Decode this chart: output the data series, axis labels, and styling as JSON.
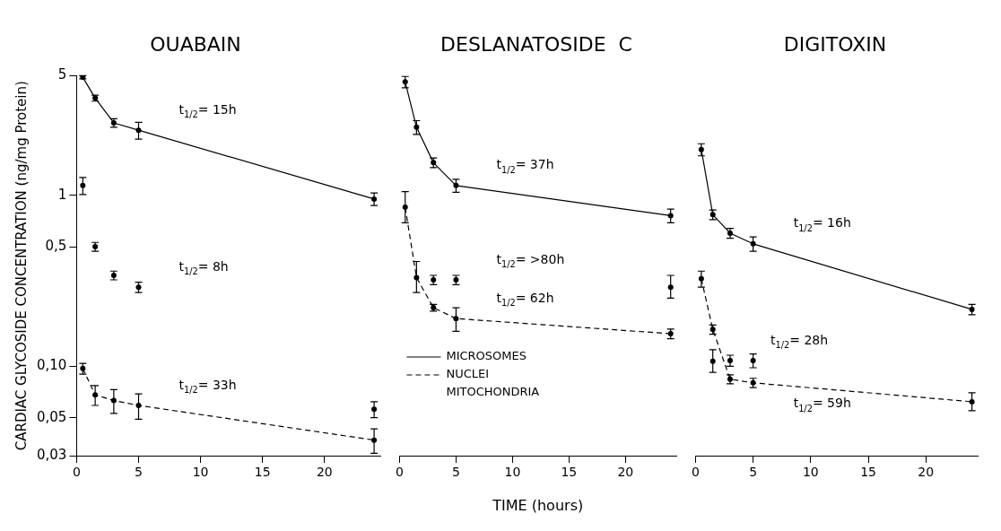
{
  "chart_data": [
    {
      "type": "line",
      "title": "OUABAIN",
      "ylabel": "CARDIAC GLYCOSIDE CONCENTRATION (ng/mg Protein)",
      "log": true,
      "marker": "circle",
      "xlim": [
        0,
        24.5
      ],
      "xticks": [
        0,
        5,
        10,
        15,
        20
      ],
      "ylim": [
        0.03,
        5
      ],
      "yticks": [
        5,
        1,
        {
          "value": 0.5,
          "label": "0,5"
        },
        {
          "value": 0.1,
          "label": "0,10"
        },
        {
          "value": 0.05,
          "label": "0,05"
        },
        {
          "value": 0.03,
          "label": "0,03"
        }
      ],
      "series": [
        {
          "type": "line",
          "line_style": "solid",
          "color": "#000000",
          "x": [
            0.5,
            1.5,
            3,
            5,
            24
          ],
          "values": [
            4.9,
            3.7,
            2.65,
            2.4,
            0.95
          ],
          "errors": [
            0.1,
            0.15,
            0.15,
            0.27,
            0.08
          ]
        },
        {
          "type": "scatter",
          "color": "#000000",
          "x": [
            0.5,
            1.5,
            3,
            5,
            24
          ],
          "values": [
            1.14,
            0.5,
            0.34,
            0.29,
            0.056
          ],
          "errors": [
            0.13,
            0.03,
            0.02,
            0.02,
            0.006
          ]
        },
        {
          "type": "line",
          "line_style": "dashed",
          "color": "#000000",
          "x": [
            0.5,
            1.5,
            3,
            5,
            24
          ],
          "values": [
            0.097,
            0.068,
            0.063,
            0.059,
            0.037
          ],
          "errors": [
            0.007,
            0.009,
            0.01,
            0.01,
            0.006
          ]
        }
      ],
      "annotations": [
        "t$_{1/2}$= 15h",
        "t$_{1/2}$= 8h",
        "t$_{1/2}$= 33h"
      ]
    },
    {
      "type": "line",
      "title": "DESLANATOSIDE  C",
      "xlabel": "TIME (hours)",
      "tick_labels": "x",
      "log": true,
      "marker": "circle",
      "legend": "bottom left",
      "xlim": [
        0,
        24.5
      ],
      "xticks": [
        0,
        5,
        10,
        15,
        20
      ],
      "ylim": [
        0.03,
        5
      ],
      "series": [
        {
          "type": "line",
          "name": "MICROSOMES",
          "line_style": "solid",
          "color": "#000000",
          "x": [
            0.5,
            1.5,
            3,
            5,
            24
          ],
          "values": [
            4.6,
            2.5,
            1.55,
            1.14,
            0.76
          ],
          "errors": [
            0.35,
            0.23,
            0.1,
            0.1,
            0.07
          ]
        },
        {
          "type": "scatter",
          "color": "#000000",
          "x": [
            3,
            5,
            24
          ],
          "values": [
            0.32,
            0.32,
            0.29
          ],
          "errors": [
            0.02,
            0.02,
            [
              0.25,
              0.34
            ]
          ]
        },
        {
          "type": "line",
          "name": "NUCLEI MITOCHONDRIA",
          "line_style": "dashed",
          "color": "#000000",
          "x": [
            0.5,
            1.5,
            3,
            5,
            24
          ],
          "values": [
            0.85,
            0.33,
            0.22,
            0.19,
            0.155
          ],
          "errors": [
            [
              0.69,
              1.05
            ],
            [
              0.27,
              0.41
            ],
            0.01,
            [
              0.16,
              0.22
            ],
            0.01
          ]
        }
      ],
      "annotations": [
        "t$_{1/2}$= 37h",
        "t$_{1/2}$= >80h",
        "t$_{1/2}$= 62h"
      ]
    },
    {
      "type": "line",
      "title": "DIGITOXIN",
      "tick_labels": "x",
      "log": true,
      "marker": "circle",
      "xlim": [
        0,
        24.5
      ],
      "xticks": [
        0,
        5,
        10,
        15,
        20
      ],
      "ylim": [
        0.03,
        5
      ],
      "series": [
        {
          "type": "line",
          "line_style": "solid",
          "color": "#000000",
          "x": [
            0.5,
            1.5,
            3,
            5,
            24
          ],
          "values": [
            1.85,
            0.77,
            0.6,
            0.52,
            0.215
          ],
          "errors": [
            [
              1.7,
              2.0
            ],
            0.05,
            0.04,
            0.05,
            0.015
          ]
        },
        {
          "type": "scatter",
          "color": "#000000",
          "x": [
            1.5,
            3,
            5
          ],
          "values": [
            0.107,
            0.108,
            0.108
          ],
          "errors": [
            [
              0.092,
              0.125
            ],
            0.008,
            0.01
          ]
        },
        {
          "type": "line",
          "line_style": "dashed",
          "color": "#000000",
          "x": [
            0.5,
            1.5,
            3,
            5,
            24
          ],
          "values": [
            0.325,
            0.164,
            0.084,
            0.08,
            0.062
          ],
          "errors": [
            [
              0.29,
              0.36
            ],
            0.01,
            0.005,
            0.005,
            [
              0.055,
              0.07
            ]
          ]
        }
      ],
      "annotations": [
        "t$_{1/2}$= 16h",
        "t$_{1/2}$= 28h",
        "t$_{1/2}$= 59h"
      ]
    }
  ]
}
